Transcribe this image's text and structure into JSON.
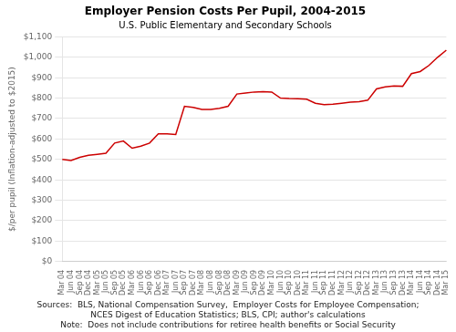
{
  "chart_data": {
    "type": "line",
    "title": "Employer Pension Costs Per Pupil, 2004-2015",
    "subtitle": "U.S. Public Elementary and Secondary Schools",
    "ylabel": "$/per pupil (Inflation-adjusted to $2015)",
    "annotations": [
      "Sources:  BLS, National Compensation Survey,  Employer Costs for Employee Compensation;",
      "NCES Digest of Education Statistics; BLS, CPI; author's calculations",
      "Note:  Does not include contributions for retiree health benefits or Social Security"
    ],
    "categories": [
      "Mar 04",
      "Jun 04",
      "Sep 04",
      "Dec 04",
      "Mar 05",
      "Jun 05",
      "Sep 05",
      "Dec 05",
      "Mar 06",
      "Jun 06",
      "Sep 06",
      "Dec 06",
      "Mar 07",
      "Jun 07",
      "Sep 07",
      "Dec 07",
      "Mar 08",
      "Jun 08",
      "Sep 08",
      "Dec 08",
      "Mar 09",
      "Jun 09",
      "Sep 09",
      "Dec 09",
      "Mar 10",
      "Jun 10",
      "Sep 10",
      "Dec 10",
      "Mar 11",
      "Jun 11",
      "Sep 11",
      "Dec 11",
      "Mar 12",
      "Jun 12",
      "Sep 12",
      "Dec 12",
      "Mar 13",
      "Jun 13",
      "Sep 13",
      "Dec 13",
      "Mar 14",
      "Jun 14",
      "Sep 14",
      "Dec 14",
      "Mar 15"
    ],
    "values": [
      500,
      495,
      510,
      520,
      525,
      530,
      580,
      590,
      555,
      565,
      580,
      625,
      625,
      622,
      760,
      755,
      745,
      745,
      750,
      760,
      820,
      825,
      830,
      832,
      830,
      800,
      798,
      797,
      795,
      775,
      768,
      770,
      775,
      780,
      783,
      790,
      845,
      855,
      860,
      858,
      920,
      930,
      960,
      1000,
      1035
    ],
    "color": "#cc0000",
    "ylim": [
      0,
      1100
    ],
    "yticks": [
      {
        "value": 0,
        "label": "$0"
      },
      {
        "value": 100,
        "label": "$100"
      },
      {
        "value": 200,
        "label": "$200"
      },
      {
        "value": 300,
        "label": "$300"
      },
      {
        "value": 400,
        "label": "$400"
      },
      {
        "value": 500,
        "label": "$500"
      },
      {
        "value": 600,
        "label": "$600"
      },
      {
        "value": 700,
        "label": "$700"
      },
      {
        "value": 800,
        "label": "$800"
      },
      {
        "value": 900,
        "label": "$900"
      },
      {
        "value": 1000,
        "label": "$1,000"
      },
      {
        "value": 1100,
        "label": "$1,100"
      }
    ],
    "grid": true
  }
}
